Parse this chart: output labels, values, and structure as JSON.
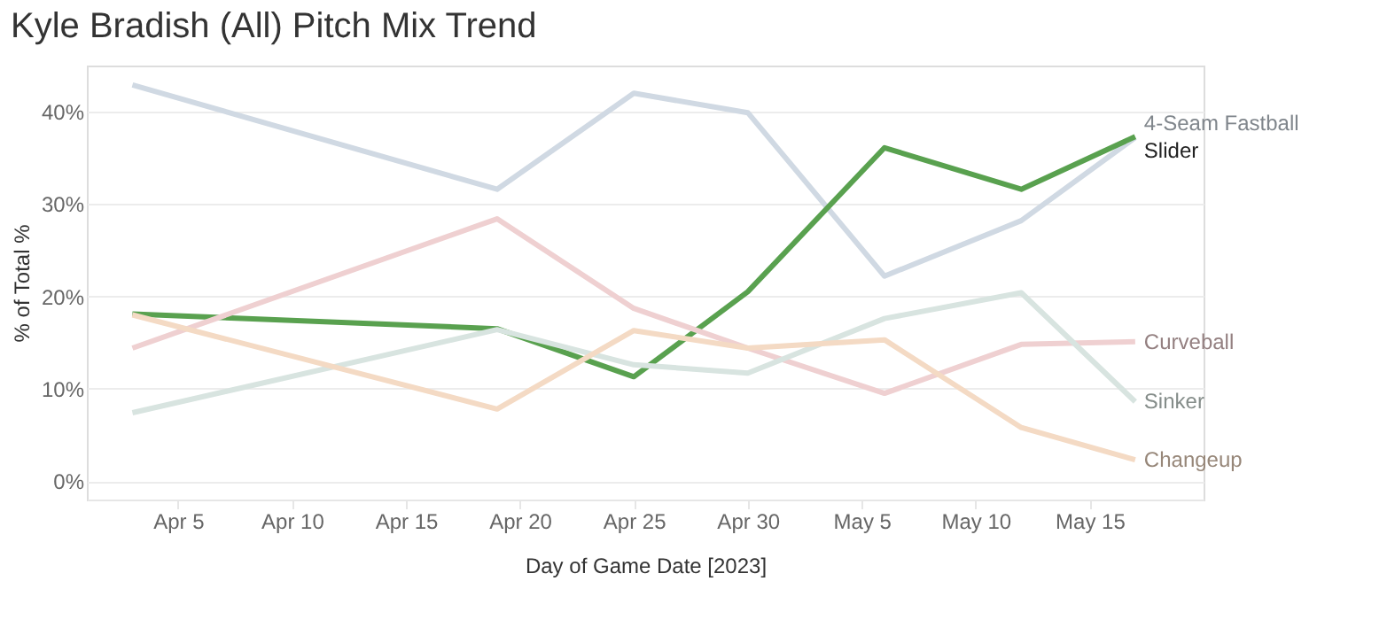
{
  "chart_data": {
    "type": "line",
    "title": "Kyle Bradish (All) Pitch Mix Trend",
    "xlabel": "Day of Game Date [2023]",
    "ylabel": "% of Total %",
    "x": [
      "2023-04-03",
      "2023-04-19",
      "2023-04-25",
      "2023-04-30",
      "2023-05-06",
      "2023-05-12",
      "2023-05-17"
    ],
    "series": [
      {
        "name": "4-Seam Fastball",
        "color": "#d0d9e3",
        "values": [
          42.9,
          31.6,
          42.0,
          39.9,
          22.2,
          28.2,
          37.2
        ]
      },
      {
        "name": "Slider",
        "color": "#59a14f",
        "values": [
          18.1,
          16.5,
          11.3,
          20.5,
          36.1,
          31.6,
          37.3
        ]
      },
      {
        "name": "Curveball",
        "color": "#efd0d1",
        "values": [
          14.4,
          28.4,
          18.7,
          14.4,
          9.5,
          14.8,
          15.1
        ]
      },
      {
        "name": "Sinker",
        "color": "#d8e4e0",
        "values": [
          7.4,
          16.4,
          12.6,
          11.7,
          17.6,
          20.4,
          8.6
        ]
      },
      {
        "name": "Changeup",
        "color": "#f4dac4",
        "values": [
          18.0,
          7.8,
          16.3,
          14.4,
          15.3,
          5.8,
          2.3
        ]
      }
    ],
    "xlim": [
      "2023-04-01",
      "2023-05-20"
    ],
    "xticks": [
      {
        "value": "2023-04-05",
        "label": "Apr 5"
      },
      {
        "value": "2023-04-10",
        "label": "Apr 10"
      },
      {
        "value": "2023-04-15",
        "label": "Apr 15"
      },
      {
        "value": "2023-04-20",
        "label": "Apr 20"
      },
      {
        "value": "2023-04-25",
        "label": "Apr 25"
      },
      {
        "value": "2023-04-30",
        "label": "Apr 30"
      },
      {
        "value": "2023-05-05",
        "label": "May 5"
      },
      {
        "value": "2023-05-10",
        "label": "May 10"
      },
      {
        "value": "2023-05-15",
        "label": "May 15"
      }
    ],
    "ylim": [
      -2,
      45
    ],
    "yticks": [
      {
        "value": 0,
        "label": "0%"
      },
      {
        "value": 10,
        "label": "10%"
      },
      {
        "value": 20,
        "label": "20%"
      },
      {
        "value": 30,
        "label": "30%"
      },
      {
        "value": 40,
        "label": "40%"
      }
    ],
    "grid": "y",
    "legend": false,
    "line_style": "solid",
    "marker": "none"
  }
}
